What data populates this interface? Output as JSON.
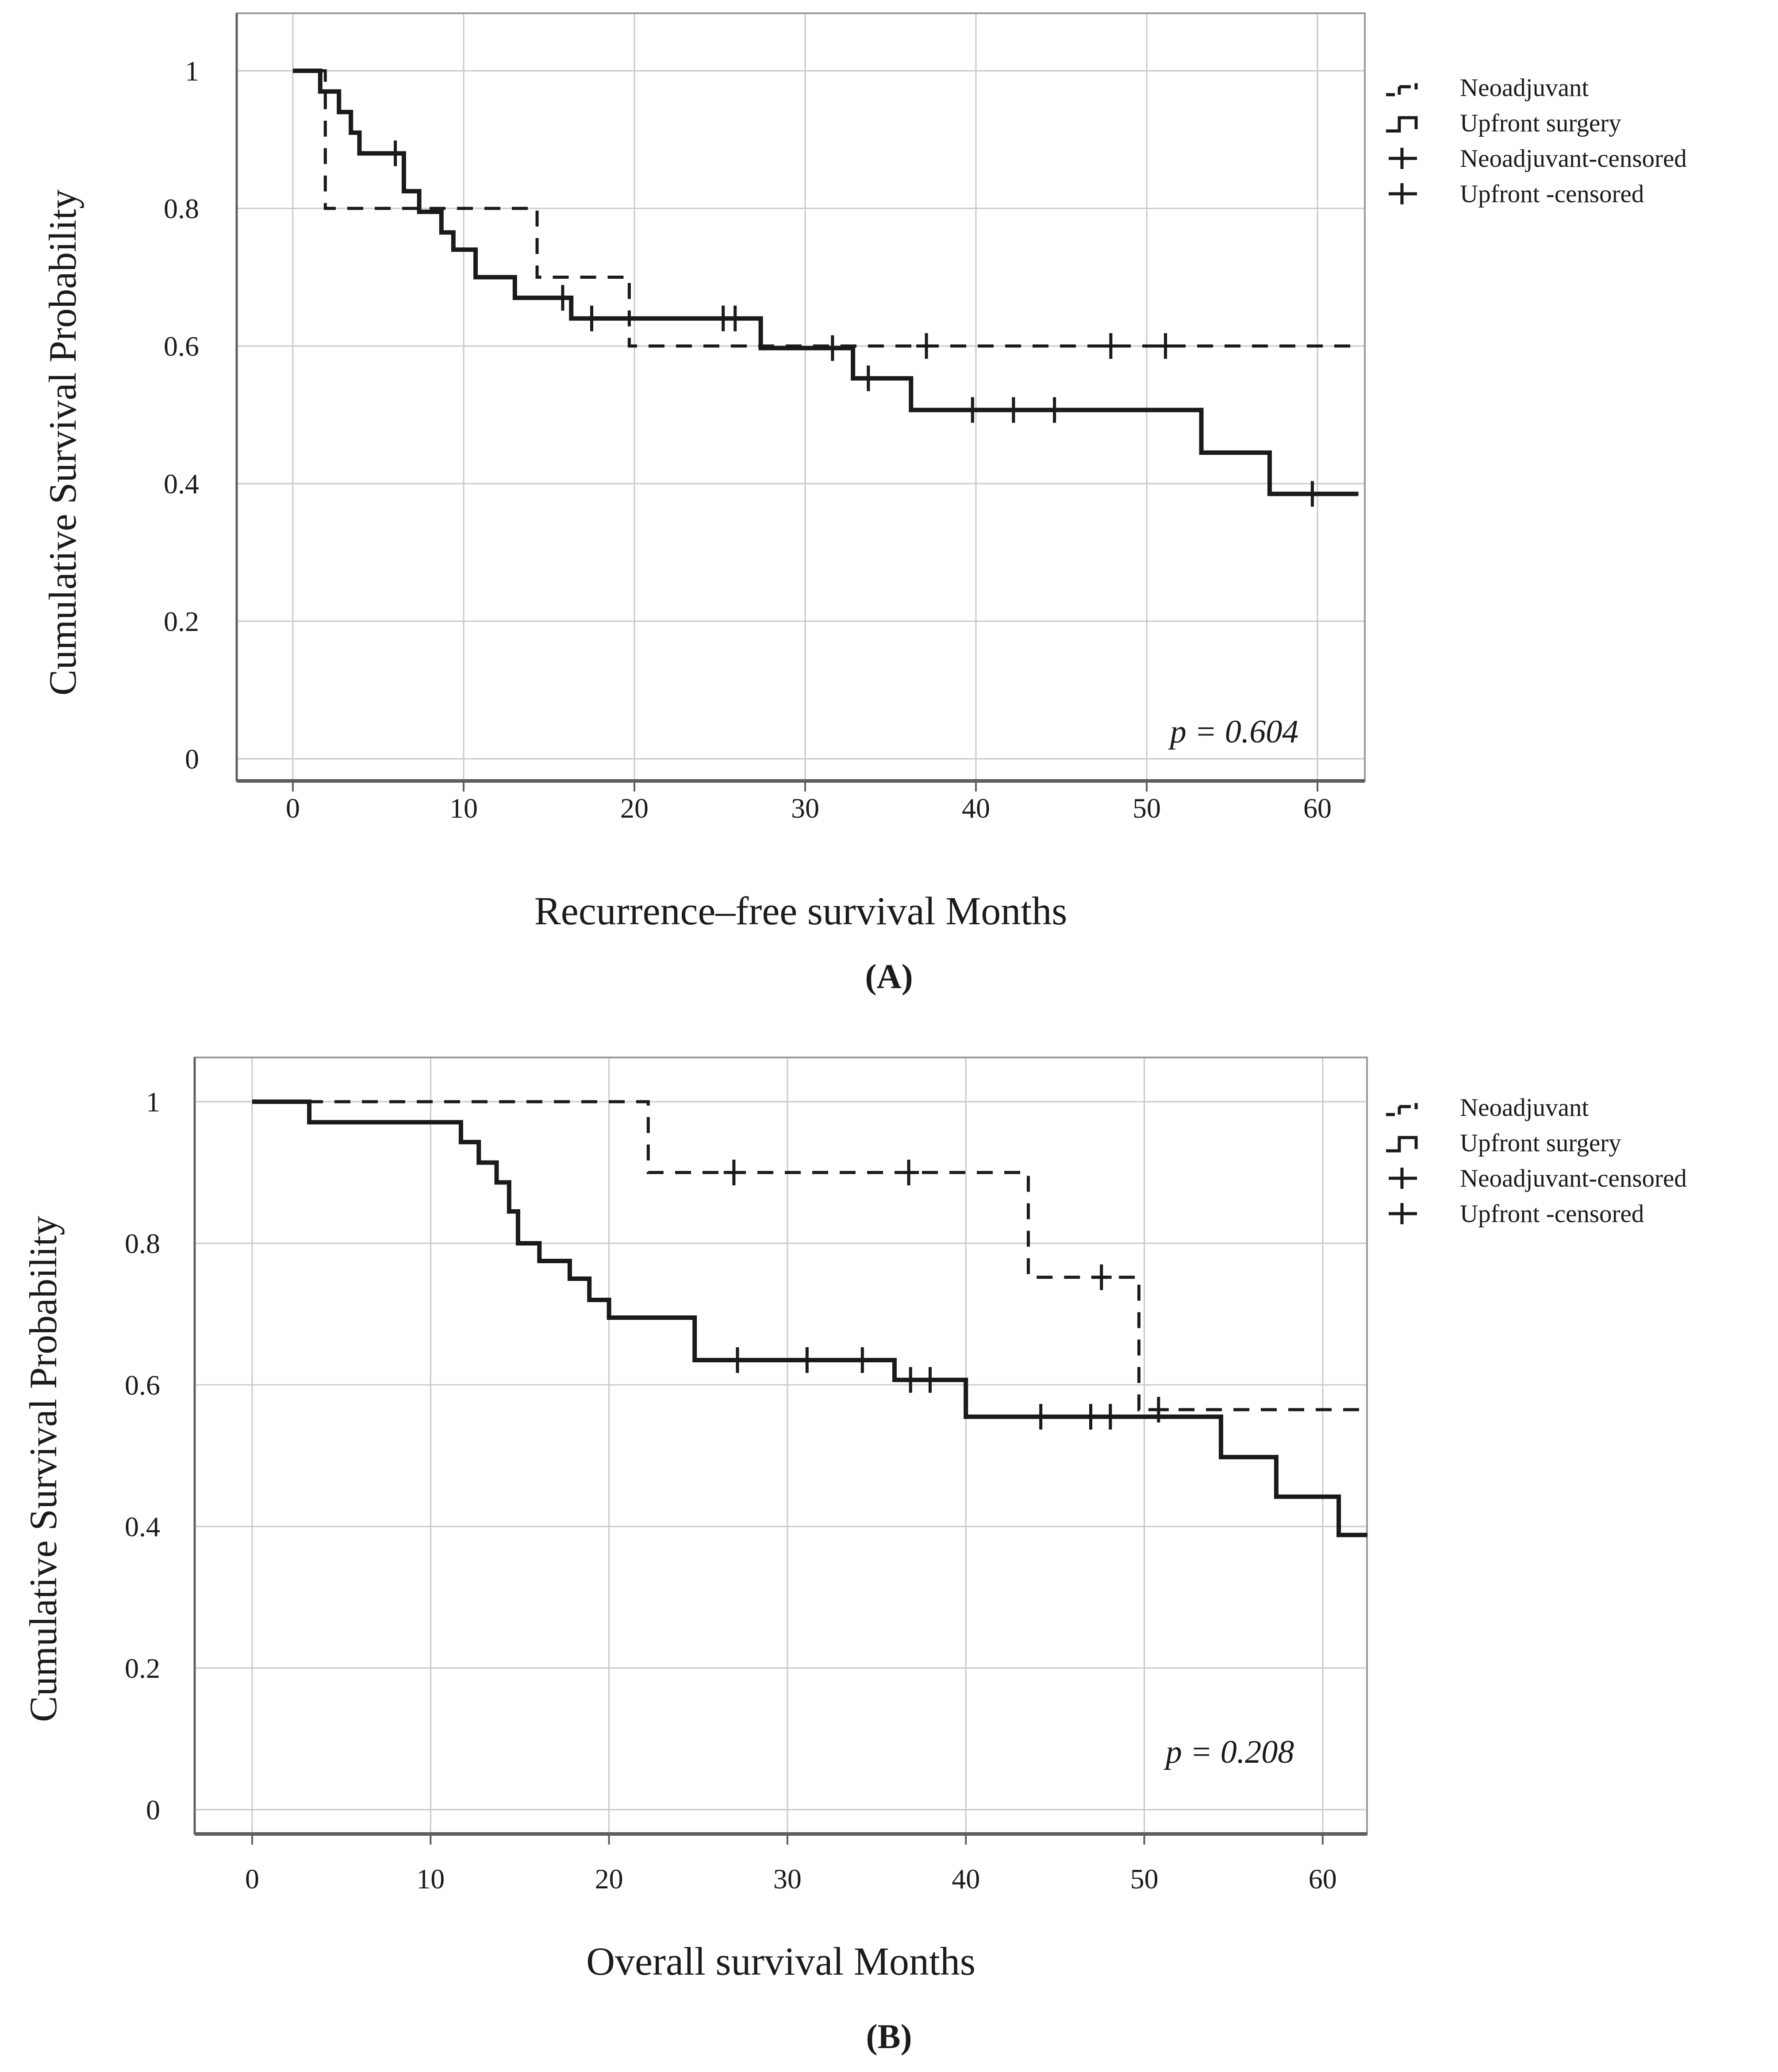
{
  "colors": {
    "ink": "#1a1a1a",
    "grid": "#cacaca",
    "frame": "#9a9a9a",
    "axis": "#5e5e5e",
    "background": "#ffffff"
  },
  "legend": {
    "position": "outside-top-right",
    "items": [
      {
        "label": "Neoadjuvant",
        "marker": "dashed-step-line"
      },
      {
        "label": "Upfront surgery",
        "marker": "solid-step-line"
      },
      {
        "label": "Neoadjuvant-censored",
        "marker": "plus-cross"
      },
      {
        "label": "Upfront -censored",
        "marker": "plus-cross"
      }
    ]
  },
  "chart_data": [
    {
      "type": "line",
      "subtype": "kaplan_meier_step_survival",
      "panel_id": "A",
      "panel_label": "(A)",
      "xlabel": "Recurrence–free survival Months",
      "ylabel": "Cumulative Survival Probability",
      "p_value": "p = 0.604",
      "grid": true,
      "xlim": [
        0,
        62.5
      ],
      "ylim": [
        0,
        1
      ],
      "x_ticks": [
        0,
        10,
        20,
        30,
        40,
        50,
        60
      ],
      "y_ticks": [
        "1",
        "0.8",
        "0.6",
        "0.4",
        "0.2",
        "0"
      ],
      "y_tick_values": [
        1,
        0.8,
        0.6,
        0.4,
        0.2,
        0
      ],
      "series": [
        {
          "name": "Neoadjuvant",
          "style": "dashed",
          "points": [
            [
              0,
              1
            ],
            [
              1.9,
              1
            ],
            [
              1.9,
              0.8
            ],
            [
              14.3,
              0.8
            ],
            [
              14.3,
              0.7
            ],
            [
              19.7,
              0.7
            ],
            [
              19.7,
              0.6
            ],
            [
              62.4,
              0.6
            ]
          ],
          "censored": [
            [
              37.1,
              0.6
            ],
            [
              47.9,
              0.6
            ],
            [
              51.1,
              0.6
            ]
          ]
        },
        {
          "name": "Upfront surgery",
          "style": "solid",
          "points": [
            [
              0,
              1
            ],
            [
              1.6,
              1
            ],
            [
              1.6,
              0.97
            ],
            [
              2.7,
              0.97
            ],
            [
              2.7,
              0.94
            ],
            [
              3.4,
              0.94
            ],
            [
              3.4,
              0.91
            ],
            [
              3.9,
              0.91
            ],
            [
              3.9,
              0.88
            ],
            [
              6.5,
              0.88
            ],
            [
              6.5,
              0.825
            ],
            [
              7.4,
              0.825
            ],
            [
              7.4,
              0.795
            ],
            [
              8.7,
              0.795
            ],
            [
              8.7,
              0.765
            ],
            [
              9.4,
              0.765
            ],
            [
              9.4,
              0.74
            ],
            [
              10.7,
              0.74
            ],
            [
              10.7,
              0.7
            ],
            [
              13,
              0.7
            ],
            [
              13,
              0.67
            ],
            [
              16.3,
              0.67
            ],
            [
              16.3,
              0.64
            ],
            [
              27.4,
              0.64
            ],
            [
              27.4,
              0.597
            ],
            [
              32.8,
              0.597
            ],
            [
              32.8,
              0.553
            ],
            [
              36.2,
              0.553
            ],
            [
              36.2,
              0.507
            ],
            [
              53.2,
              0.507
            ],
            [
              53.2,
              0.445
            ],
            [
              57.2,
              0.445
            ],
            [
              57.2,
              0.385
            ],
            [
              62.4,
              0.385
            ]
          ],
          "censored": [
            [
              6,
              0.88
            ],
            [
              15.8,
              0.67
            ],
            [
              17.5,
              0.64
            ],
            [
              25.2,
              0.64
            ],
            [
              25.9,
              0.64
            ],
            [
              31.6,
              0.597
            ],
            [
              33.7,
              0.553
            ],
            [
              39.8,
              0.507
            ],
            [
              42.2,
              0.507
            ],
            [
              44.6,
              0.507
            ],
            [
              59.7,
              0.385
            ]
          ]
        }
      ]
    },
    {
      "type": "line",
      "subtype": "kaplan_meier_step_survival",
      "panel_id": "B",
      "panel_label": "(B)",
      "xlabel": "Overall survival Months",
      "ylabel": "Cumulative Survival Probability",
      "p_value": "p = 0.208",
      "grid": true,
      "xlim": [
        0,
        62.5
      ],
      "ylim": [
        0,
        1
      ],
      "x_ticks": [
        0,
        10,
        20,
        30,
        40,
        50,
        60
      ],
      "y_ticks": [
        "1",
        "0.8",
        "0.6",
        "0.4",
        "0.2",
        "0"
      ],
      "y_tick_values": [
        1,
        0.8,
        0.6,
        0.4,
        0.2,
        0
      ],
      "series": [
        {
          "name": "Neoadjuvant",
          "style": "dashed",
          "points": [
            [
              0,
              1
            ],
            [
              22.2,
              1
            ],
            [
              22.2,
              0.9
            ],
            [
              43.5,
              0.9
            ],
            [
              43.5,
              0.752
            ],
            [
              49.7,
              0.752
            ],
            [
              49.7,
              0.565
            ],
            [
              62.5,
              0.565
            ]
          ],
          "censored": [
            [
              27,
              0.9
            ],
            [
              36.8,
              0.9
            ],
            [
              47.6,
              0.752
            ],
            [
              50.8,
              0.565
            ]
          ]
        },
        {
          "name": "Upfront surgery",
          "style": "solid",
          "points": [
            [
              0,
              1
            ],
            [
              3.2,
              1
            ],
            [
              3.2,
              0.971
            ],
            [
              11.7,
              0.971
            ],
            [
              11.7,
              0.943
            ],
            [
              12.7,
              0.943
            ],
            [
              12.7,
              0.914
            ],
            [
              13.7,
              0.914
            ],
            [
              13.7,
              0.886
            ],
            [
              14.4,
              0.886
            ],
            [
              14.4,
              0.845
            ],
            [
              14.9,
              0.845
            ],
            [
              14.9,
              0.8
            ],
            [
              16.1,
              0.8
            ],
            [
              16.1,
              0.775
            ],
            [
              17.8,
              0.775
            ],
            [
              17.8,
              0.75
            ],
            [
              18.9,
              0.75
            ],
            [
              18.9,
              0.72
            ],
            [
              20,
              0.72
            ],
            [
              20,
              0.695
            ],
            [
              24.8,
              0.695
            ],
            [
              24.8,
              0.635
            ],
            [
              36,
              0.635
            ],
            [
              36,
              0.607
            ],
            [
              40,
              0.607
            ],
            [
              40,
              0.555
            ],
            [
              54.3,
              0.555
            ],
            [
              54.3,
              0.498
            ],
            [
              57.4,
              0.498
            ],
            [
              57.4,
              0.442
            ],
            [
              60.9,
              0.442
            ],
            [
              60.9,
              0.388
            ],
            [
              62.5,
              0.388
            ]
          ],
          "censored": [
            [
              27.2,
              0.635
            ],
            [
              31.1,
              0.635
            ],
            [
              34.2,
              0.635
            ],
            [
              36.9,
              0.607
            ],
            [
              38,
              0.607
            ],
            [
              44.2,
              0.555
            ],
            [
              47,
              0.555
            ],
            [
              48.1,
              0.555
            ]
          ]
        }
      ]
    }
  ]
}
